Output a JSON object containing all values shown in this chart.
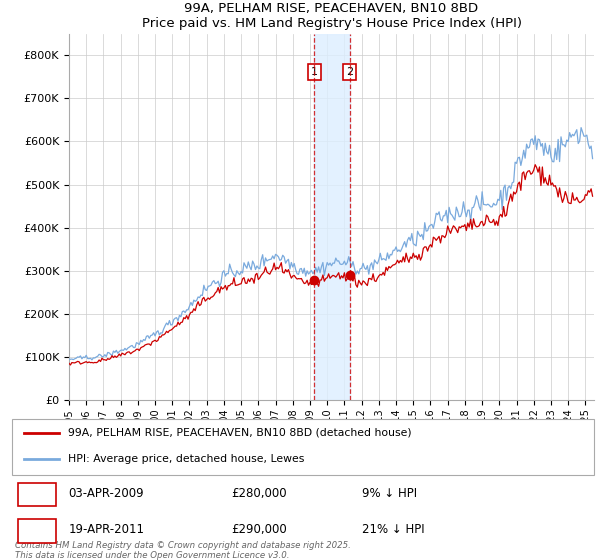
{
  "title1": "99A, PELHAM RISE, PEACEHAVEN, BN10 8BD",
  "title2": "Price paid vs. HM Land Registry's House Price Index (HPI)",
  "legend_label1": "99A, PELHAM RISE, PEACEHAVEN, BN10 8BD (detached house)",
  "legend_label2": "HPI: Average price, detached house, Lewes",
  "event1_label": "1",
  "event1_date": "03-APR-2009",
  "event1_price": "£280,000",
  "event1_hpi": "9% ↓ HPI",
  "event1_x": 2009.25,
  "event1_y": 280000,
  "event2_label": "2",
  "event2_date": "19-APR-2011",
  "event2_price": "£290,000",
  "event2_hpi": "21% ↓ HPI",
  "event2_x": 2011.3,
  "event2_y": 290000,
  "footer": "Contains HM Land Registry data © Crown copyright and database right 2025.\nThis data is licensed under the Open Government Licence v3.0.",
  "line_color_property": "#cc0000",
  "line_color_hpi": "#7aaadd",
  "event_shade_color": "#ddeeff",
  "event_line_color": "#cc0000",
  "yticks": [
    0,
    100000,
    200000,
    300000,
    400000,
    500000,
    600000,
    700000,
    800000
  ],
  "ytick_labels": [
    "£0",
    "£100K",
    "£200K",
    "£300K",
    "£400K",
    "£500K",
    "£600K",
    "£700K",
    "£800K"
  ],
  "xmin": 1995,
  "xmax": 2025.5,
  "ymin": 0,
  "ymax": 850000,
  "hpi_base": [
    95000,
    98000,
    105000,
    118000,
    135000,
    158000,
    188000,
    225000,
    268000,
    298000,
    312000,
    325000,
    348000,
    325000,
    308000,
    318000,
    325000,
    312000,
    320000,
    348000,
    372000,
    400000,
    435000,
    448000,
    458000,
    470000,
    535000,
    590000,
    565000,
    600000,
    610000
  ],
  "prop_base": [
    85000,
    88000,
    94000,
    106000,
    121000,
    142000,
    170000,
    202000,
    242000,
    268000,
    280000,
    292000,
    315000,
    292000,
    276000,
    285000,
    292000,
    278000,
    288000,
    314000,
    336000,
    360000,
    392000,
    402000,
    413000,
    425000,
    484000,
    528000,
    498000,
    462000,
    468000
  ]
}
